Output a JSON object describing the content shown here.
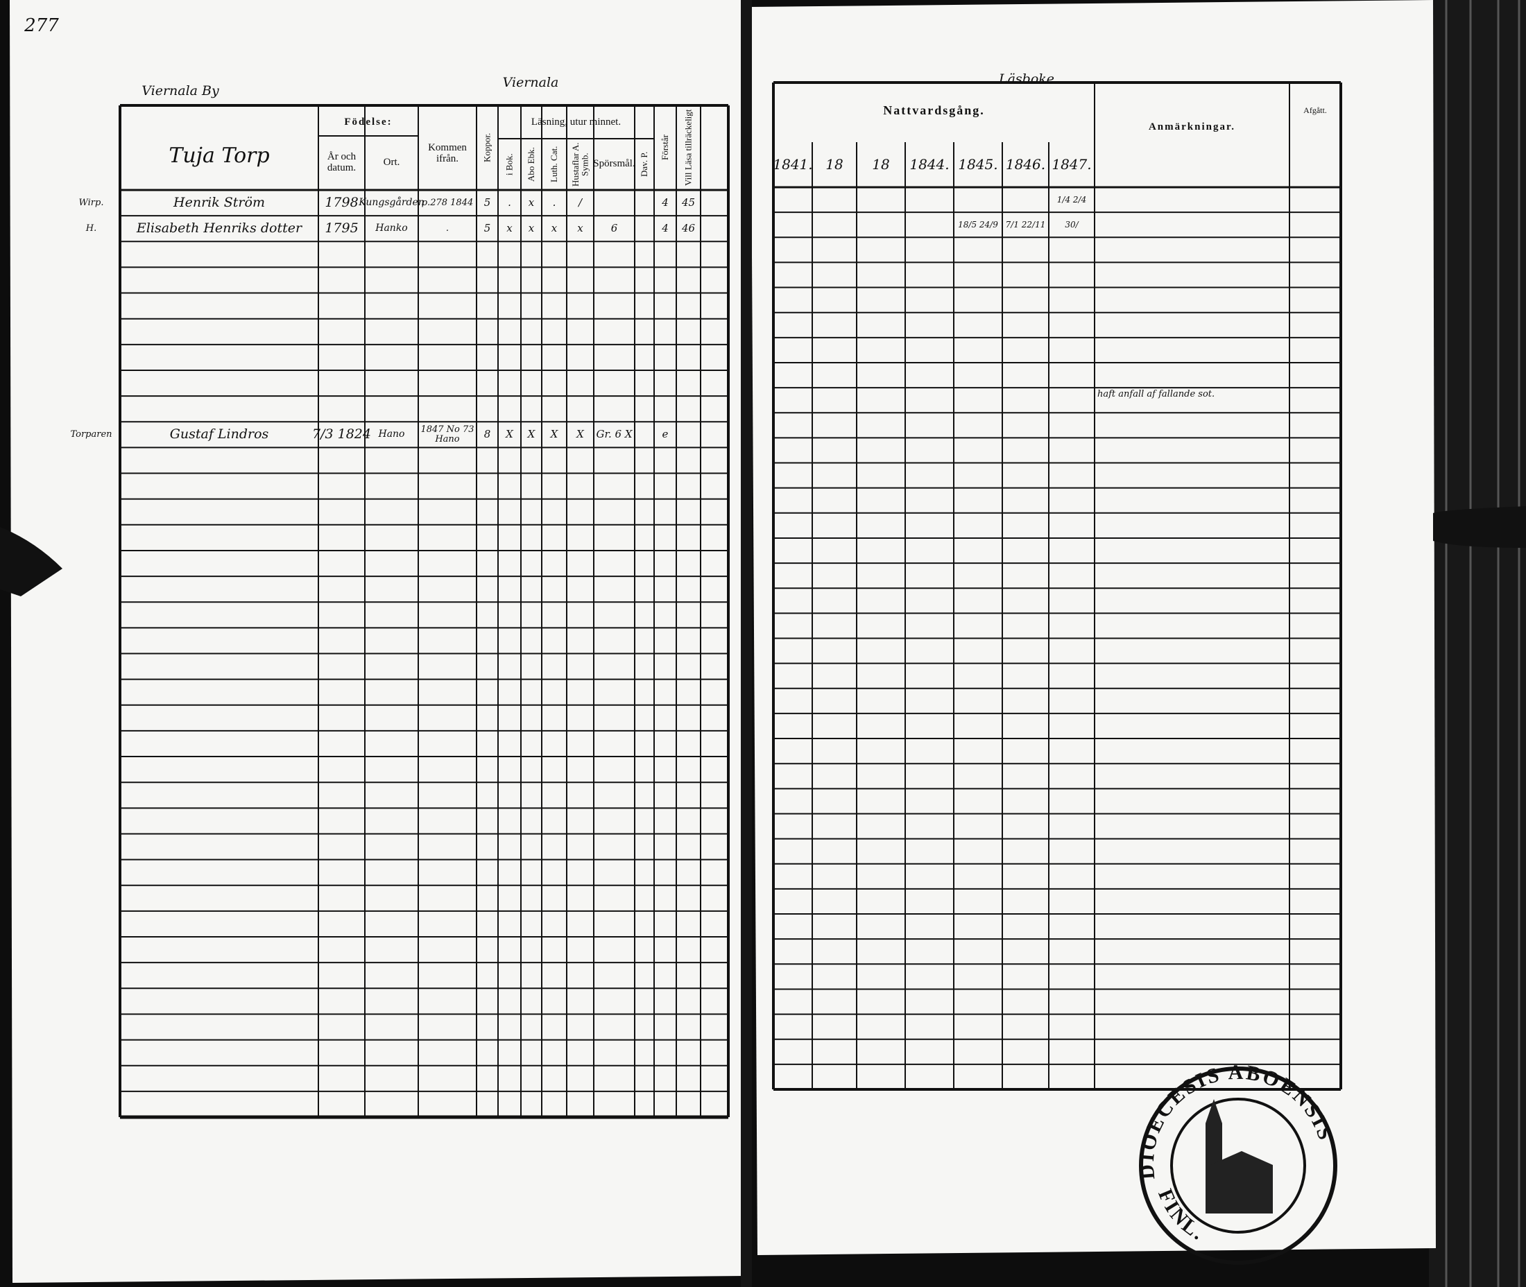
{
  "page_number": "277",
  "center_heading": "Viernala",
  "left_page": {
    "village": "Viernala By",
    "place_heading": "Tuja Torp",
    "header": {
      "fodelse": "Födelse:",
      "ar_och_datum": "År och datum.",
      "ort": "Ort.",
      "kommen_ifran": "Kommen ifrån.",
      "koppor": "Koppor.",
      "lasning": "Läsning, utur minnet.",
      "i_bok": "i Bok.",
      "abo_ebk": "Abo Ebk.",
      "luth_cat": "Luth. Cat.",
      "hustaflar": "Hustaflar A. Symb.",
      "sporsmal": "Spörsmål.",
      "dav_p": "Dav. P.",
      "forstar": "Förstår",
      "vill_lasa": "Vill Läsa tillräckeligt"
    },
    "rows": [
      {
        "role": "Wirp.",
        "name": "Henrik Ström",
        "born": "1798",
        "place": "Kungsgården",
        "from": "p.278 1844",
        "koppor": "5",
        "i_bok": ".",
        "abo": "x",
        "luth": ".",
        "hust": "/",
        "forstar": "4",
        "vill": "45"
      },
      {
        "role": "H.",
        "name": "Elisabeth Henriks dotter",
        "born": "1795",
        "place": "Hanko",
        "from": ".",
        "koppor": "5",
        "i_bok": "x",
        "abo": "x",
        "luth": "x",
        "hust": "x",
        "sporsmal": "6",
        "forstar": "4",
        "vill": "46"
      },
      null,
      null,
      null,
      null,
      null,
      null,
      null,
      {
        "role": "Torparen",
        "name": "Gustaf Lindros",
        "born": "7/3 1824",
        "place": "Hano",
        "from": "1847 No 73 Hano",
        "koppor": "8",
        "i_bok": "X",
        "abo": "X",
        "luth": "X",
        "hust": "X",
        "sporsmal": "Gr. 6 X",
        "forstar": "e"
      }
    ]
  },
  "right_page": {
    "heading": "Läsboke",
    "header": {
      "nattvardsgang": "Nattvardsgång.",
      "years": [
        "1841.",
        "18",
        "18",
        "1844.",
        "1845.",
        "1846.",
        "1847."
      ],
      "anmarkningar": "Anmärkningar.",
      "afgatt": "Afgått."
    },
    "rows": [
      {
        "y1847": "1/4 2/4"
      },
      {
        "y1845": "18/5 24/9",
        "y1846": "7/1 22/11",
        "y1847": "30/"
      },
      null,
      null,
      null,
      null,
      null,
      null,
      {
        "anm": "haft anfall af fallande sot."
      }
    ]
  },
  "stamp": {
    "text": "DIOECESIS ABOENSIS",
    "country": "FINL."
  }
}
